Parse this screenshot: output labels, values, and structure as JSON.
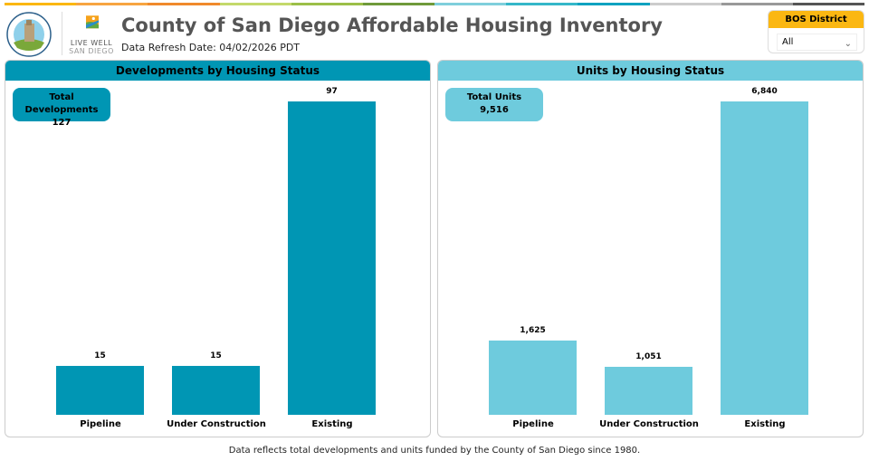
{
  "header": {
    "title": "County of San Diego Affordable Housing Inventory",
    "refresh": "Data Refresh Date: 04/02/2026 PDT",
    "logo_text": "COUNTY OF SAN DIEGO",
    "live_well_1": "LIVE WELL",
    "live_well_2": "SAN DIEGO"
  },
  "strip_colors": [
    "#fbb712",
    "#f7a541",
    "#f08a2c",
    "#c4d96b",
    "#9cbf48",
    "#6f9a3a",
    "#7fcfdc",
    "#35b7c9",
    "#0ea2c0",
    "#cccccc",
    "#999999",
    "#555555"
  ],
  "slicer": {
    "title": "BOS District",
    "value": "All",
    "icon": "chevron-down-icon"
  },
  "chart_data": [
    {
      "type": "bar",
      "title": "Developments by Housing Status",
      "card_label": "Total Developments",
      "card_value": "127",
      "categories": [
        "Pipeline",
        "Under Construction",
        "Existing"
      ],
      "values": [
        15,
        15,
        97
      ],
      "value_labels": [
        "15",
        "15",
        "97"
      ],
      "color": "#0096b4",
      "header_color": "#0096b4",
      "ylim": [
        0,
        97
      ]
    },
    {
      "type": "bar",
      "title": "Units by Housing Status",
      "card_label": "Total Units",
      "card_value": "9,516",
      "categories": [
        "Pipeline",
        "Under Construction",
        "Existing"
      ],
      "values": [
        1625,
        1051,
        6840
      ],
      "value_labels": [
        "1,625",
        "1,051",
        "6,840"
      ],
      "color": "#6ecbdd",
      "header_color": "#6ecbdd",
      "ylim": [
        0,
        6840
      ]
    }
  ],
  "footer": "Data reflects total developments and units funded by the County of San Diego since 1980."
}
